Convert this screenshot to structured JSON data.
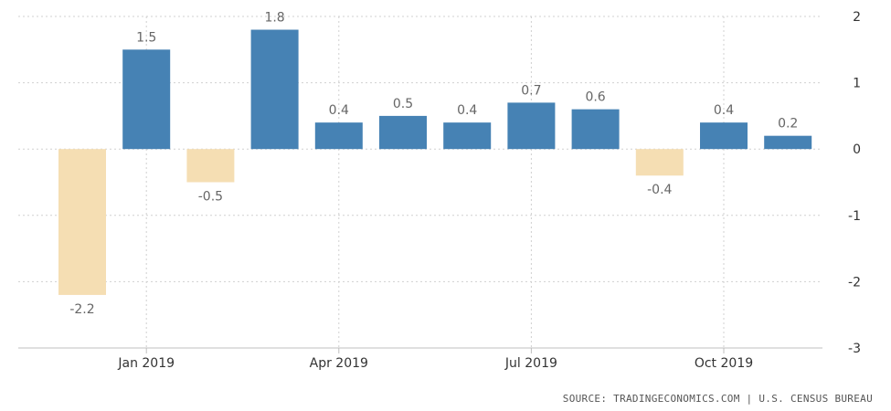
{
  "chart_data": {
    "type": "bar",
    "categories": [
      "Dec 2018",
      "Jan 2019",
      "Feb 2019",
      "Mar 2019",
      "Apr 2019",
      "May 2019",
      "Jun 2019",
      "Jul 2019",
      "Aug 2019",
      "Sep 2019",
      "Oct 2019",
      "Nov 2019"
    ],
    "values": [
      -2.2,
      1.5,
      -0.5,
      1.8,
      0.4,
      0.5,
      0.4,
      0.7,
      0.6,
      -0.4,
      0.4,
      0.2
    ],
    "data_labels": [
      "-2.2",
      "1.5",
      "-0.5",
      "1.8",
      "0.4",
      "0.5",
      "0.4",
      "0.7",
      "0.6",
      "-0.4",
      "0.4",
      "0.2"
    ],
    "x_tick_labels": [
      {
        "index": 1,
        "label": "Jan 2019"
      },
      {
        "index": 4,
        "label": "Apr 2019"
      },
      {
        "index": 7,
        "label": "Jul 2019"
      },
      {
        "index": 10,
        "label": "Oct 2019"
      }
    ],
    "y_ticks": [
      2,
      1,
      0,
      -1,
      -2,
      -3
    ],
    "ylim": [
      -3,
      2
    ],
    "grid": true,
    "y_axis_side": "right",
    "colors": {
      "positive": "#4682b4",
      "negative": "#f5deb3"
    },
    "title": "",
    "xlabel": "",
    "ylabel": ""
  },
  "source_text": "SOURCE: TRADINGECONOMICS.COM | U.S. CENSUS BUREAU"
}
